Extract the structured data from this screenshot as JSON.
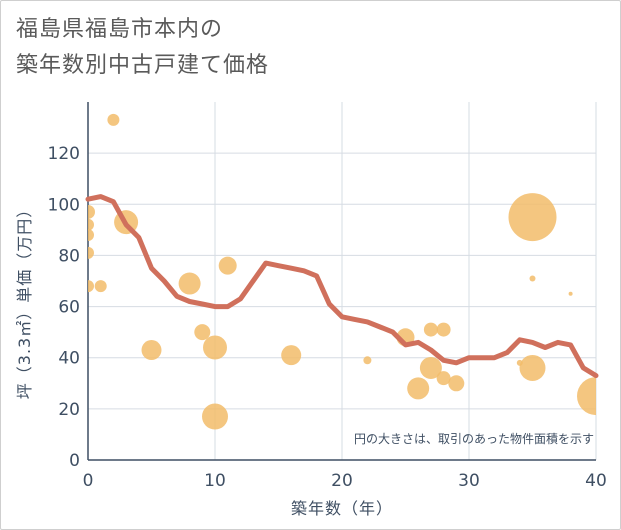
{
  "chart_data": {
    "type": "scatter",
    "title_lines": [
      "福島県福島市本内の",
      "築年数別中古戸建て価格"
    ],
    "xlabel": "築年数（年）",
    "ylabel": "坪（3.3㎡）単価（万円）",
    "xlim": [
      0,
      40
    ],
    "ylim": [
      0,
      140
    ],
    "x_ticks": [
      0,
      10,
      20,
      30,
      40
    ],
    "y_ticks": [
      0,
      20,
      40,
      60,
      80,
      100,
      120
    ],
    "grid": true,
    "note": "円の大きさは、取引のあった物件面積を示す",
    "colors": {
      "bubble": "#f2bc6a",
      "trend": "#d0705c",
      "grid": "#d6dce3",
      "axis": "#3f4f63"
    },
    "series": [
      {
        "kind": "bubbles",
        "points": [
          {
            "x": 0,
            "y": 97,
            "size": 7
          },
          {
            "x": 0,
            "y": 92,
            "size": 6
          },
          {
            "x": 0,
            "y": 88,
            "size": 6
          },
          {
            "x": 0,
            "y": 81,
            "size": 6
          },
          {
            "x": 0,
            "y": 68,
            "size": 6
          },
          {
            "x": 1,
            "y": 68,
            "size": 6
          },
          {
            "x": 2,
            "y": 133,
            "size": 6
          },
          {
            "x": 3,
            "y": 93,
            "size": 12
          },
          {
            "x": 5,
            "y": 43,
            "size": 10
          },
          {
            "x": 8,
            "y": 69,
            "size": 11
          },
          {
            "x": 9,
            "y": 50,
            "size": 8
          },
          {
            "x": 10,
            "y": 44,
            "size": 12
          },
          {
            "x": 10,
            "y": 17,
            "size": 13
          },
          {
            "x": 11,
            "y": 76,
            "size": 9
          },
          {
            "x": 16,
            "y": 41,
            "size": 10
          },
          {
            "x": 22,
            "y": 39,
            "size": 4
          },
          {
            "x": 25,
            "y": 48,
            "size": 9
          },
          {
            "x": 26,
            "y": 28,
            "size": 11
          },
          {
            "x": 27,
            "y": 51,
            "size": 7
          },
          {
            "x": 27,
            "y": 36,
            "size": 11
          },
          {
            "x": 28,
            "y": 51,
            "size": 7
          },
          {
            "x": 28,
            "y": 32,
            "size": 7
          },
          {
            "x": 29,
            "y": 30,
            "size": 8
          },
          {
            "x": 34,
            "y": 38,
            "size": 3
          },
          {
            "x": 35,
            "y": 95,
            "size": 24
          },
          {
            "x": 35,
            "y": 36,
            "size": 13
          },
          {
            "x": 35,
            "y": 71,
            "size": 3
          },
          {
            "x": 38,
            "y": 65,
            "size": 2
          },
          {
            "x": 40,
            "y": 25,
            "size": 19
          }
        ]
      },
      {
        "kind": "line",
        "x": [
          0,
          1,
          2,
          3,
          4,
          5,
          6,
          7,
          8,
          9,
          10,
          11,
          12,
          13,
          14,
          15,
          16,
          17,
          18,
          19,
          20,
          21,
          22,
          23,
          24,
          25,
          26,
          27,
          28,
          29,
          30,
          31,
          32,
          33,
          34,
          35,
          36,
          37,
          38,
          39,
          40
        ],
        "y": [
          102,
          103,
          101,
          92,
          87,
          75,
          70,
          64,
          62,
          61,
          60,
          60,
          63,
          70,
          77,
          76,
          75,
          74,
          72,
          61,
          56,
          55,
          54,
          52,
          50,
          45,
          46,
          43,
          39,
          38,
          40,
          40,
          40,
          42,
          47,
          46,
          44,
          46,
          45,
          36,
          33
        ]
      }
    ]
  }
}
